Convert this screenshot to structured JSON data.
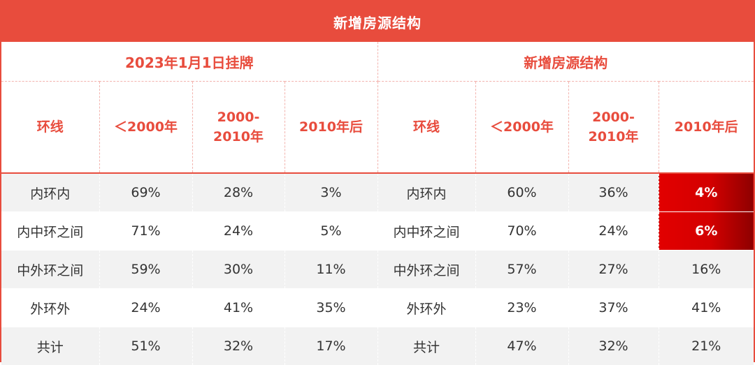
{
  "title": "新增房源结构",
  "groups": {
    "left": "2023年1月1日挂牌",
    "right": "新增房源结构"
  },
  "headers": {
    "left": [
      "环线",
      "＜2000年",
      "2000-\n2010年",
      "2010年后"
    ],
    "right": [
      "环线",
      "＜2000年",
      "2000-\n2010年",
      "2010年后"
    ]
  },
  "rows": [
    {
      "left": [
        "内环内",
        "69%",
        "28%",
        "3%"
      ],
      "right": [
        "内环内",
        "60%",
        "36%",
        "4%"
      ]
    },
    {
      "left": [
        "内中环之间",
        "71%",
        "24%",
        "5%"
      ],
      "right": [
        "内中环之间",
        "70%",
        "24%",
        "6%"
      ]
    },
    {
      "left": [
        "中外环之间",
        "59%",
        "30%",
        "11%"
      ],
      "right": [
        "中外环之间",
        "57%",
        "27%",
        "16%"
      ]
    },
    {
      "left": [
        "外环外",
        "24%",
        "41%",
        "35%"
      ],
      "right": [
        "外环外",
        "23%",
        "37%",
        "41%"
      ]
    },
    {
      "left": [
        "共计",
        "51%",
        "32%",
        "17%"
      ],
      "right": [
        "共计",
        "47%",
        "32%",
        "21%"
      ]
    }
  ],
  "colors": {
    "accent": "#e84c3d",
    "highlight": "#d30000",
    "row_shade": "#f2f2f2"
  }
}
